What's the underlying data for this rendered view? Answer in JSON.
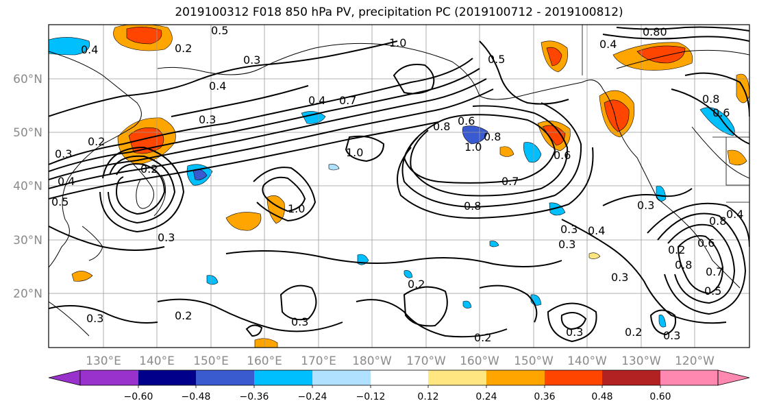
{
  "title": "2019100312 F018 850 hPa PV, precipitation PC (2019100712 - 2019100812)",
  "lat_labels": [
    "60°N",
    "50°N",
    "40°N",
    "30°N",
    "20°N"
  ],
  "lon_labels": [
    "130°E",
    "140°E",
    "150°E",
    "160°E",
    "170°E",
    "180°W",
    "170°W",
    "160°W",
    "150°W",
    "140°W",
    "130°W",
    "120°W"
  ],
  "contour_labels": [
    "0.5",
    "0.4",
    "0.2",
    "0.3",
    "0.4",
    "1.0",
    "0.5",
    "0.80",
    "0.4",
    "0.3",
    "0.2",
    "0.4",
    "0.7",
    "0.3",
    "0.8",
    "0.6",
    "1.0",
    "0.8",
    "0.7",
    "0.8",
    "0.6",
    "0.2",
    "0.4",
    "0.5",
    "0.3",
    "1.0",
    "1.0",
    "0.6",
    "0.8",
    "0.3",
    "0.4",
    "0.3",
    "0.8",
    "0.4",
    "0.3",
    "0.8",
    "0.6",
    "0.7",
    "0.5",
    "0.2",
    "0.3",
    "0.3",
    "0.2",
    "0.2",
    "0.2",
    "0.3",
    "0.3",
    "0.2",
    "0.3"
  ],
  "colorbar": {
    "ticks": [
      "−0.60",
      "−0.48",
      "−0.36",
      "−0.24",
      "−0.12",
      "0.12",
      "0.24",
      "0.36",
      "0.48",
      "0.60"
    ],
    "colors": [
      "#9932cc",
      "#00008b",
      "#3a5bd0",
      "#00bfff",
      "#b0e2ff",
      "#ffffff",
      "#ffe680",
      "#ffa500",
      "#ff4500",
      "#b22222",
      "#ff88b0"
    ]
  }
}
